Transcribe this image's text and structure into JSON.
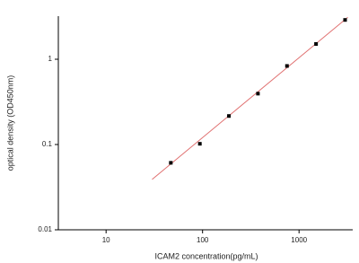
{
  "chart_data": {
    "type": "scatter",
    "x_label": "ICAM2 concentration(pg/mL)",
    "y_label": "optical density (OD450nm)",
    "xscale": "log",
    "yscale": "log",
    "xlim": [
      3.2,
      3600
    ],
    "ylim": [
      0.01,
      3.2
    ],
    "xticks": [
      10,
      100,
      1000
    ],
    "yticks": [
      0.01,
      0.1,
      1
    ],
    "series": [
      {
        "type": "scatter",
        "color": "#000000",
        "x": [
          46.875,
          93.75,
          187.5,
          375,
          750,
          1500,
          3000
        ],
        "values": [
          0.061,
          0.102,
          0.216,
          0.395,
          0.834,
          1.51,
          2.89
        ]
      },
      {
        "type": "line",
        "color": "#e07070",
        "x": [
          30,
          3200
        ],
        "values": [
          0.039,
          3.1
        ]
      }
    ]
  }
}
